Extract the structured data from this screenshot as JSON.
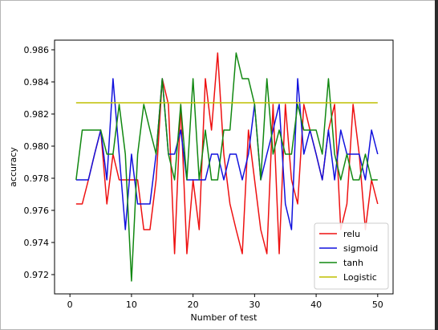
{
  "chart_data": {
    "type": "line",
    "xlabel": "Number of test",
    "ylabel": "accuracy",
    "xlim": [
      -2.5,
      52.5
    ],
    "ylim": [
      0.9708,
      0.9866
    ],
    "xticks": [
      0,
      10,
      20,
      30,
      40,
      50
    ],
    "yticks": [
      0.972,
      0.974,
      0.976,
      0.978,
      0.98,
      0.982,
      0.984,
      0.986
    ],
    "xtick_labels": [
      "0",
      "10",
      "20",
      "30",
      "40",
      "50"
    ],
    "ytick_labels": [
      "0.972",
      "0.974",
      "0.976",
      "0.978",
      "0.980",
      "0.982",
      "0.984",
      "0.986"
    ],
    "legend_position": "lower-right",
    "grid": false,
    "x": [
      1,
      2,
      3,
      4,
      5,
      6,
      7,
      8,
      9,
      10,
      11,
      12,
      13,
      14,
      15,
      16,
      17,
      18,
      19,
      20,
      21,
      22,
      23,
      24,
      25,
      26,
      27,
      28,
      29,
      30,
      31,
      32,
      33,
      34,
      35,
      36,
      37,
      38,
      39,
      40,
      41,
      42,
      43,
      44,
      45,
      46,
      47,
      48,
      49,
      50
    ],
    "series": [
      {
        "name": "relu",
        "color": "#ee1111",
        "values": [
          0.9764,
          0.9764,
          0.9779,
          0.9795,
          0.981,
          0.9764,
          0.9795,
          0.9779,
          0.9779,
          0.9779,
          0.9779,
          0.9748,
          0.9748,
          0.9779,
          0.9842,
          0.9826,
          0.9733,
          0.9826,
          0.9733,
          0.9779,
          0.9748,
          0.9842,
          0.981,
          0.9858,
          0.9795,
          0.9764,
          0.9748,
          0.9733,
          0.981,
          0.9779,
          0.9748,
          0.9733,
          0.9826,
          0.9733,
          0.9826,
          0.9779,
          0.9764,
          0.9826,
          0.981,
          0.9795,
          0.9779,
          0.981,
          0.9826,
          0.9748,
          0.9764,
          0.9826,
          0.9795,
          0.9748,
          0.9779,
          0.9764
        ]
      },
      {
        "name": "sigmoid",
        "color": "#1111dd",
        "values": [
          0.9779,
          0.9779,
          0.9779,
          0.9795,
          0.981,
          0.9779,
          0.9842,
          0.9795,
          0.9748,
          0.9795,
          0.9764,
          0.9764,
          0.9764,
          0.9795,
          0.9842,
          0.9795,
          0.9795,
          0.981,
          0.9779,
          0.9779,
          0.9779,
          0.9779,
          0.9795,
          0.9795,
          0.9779,
          0.9795,
          0.9795,
          0.9779,
          0.9795,
          0.9826,
          0.9779,
          0.9795,
          0.981,
          0.9826,
          0.9764,
          0.9748,
          0.9842,
          0.9795,
          0.981,
          0.9795,
          0.9779,
          0.981,
          0.9779,
          0.981,
          0.9795,
          0.9795,
          0.9795,
          0.9779,
          0.981,
          0.9795
        ]
      },
      {
        "name": "tanh",
        "color": "#118811",
        "values": [
          0.9779,
          0.981,
          0.981,
          0.981,
          0.981,
          0.9795,
          0.9795,
          0.9826,
          0.9795,
          0.9716,
          0.9795,
          0.9826,
          0.981,
          0.9795,
          0.9842,
          0.9795,
          0.9779,
          0.9826,
          0.9779,
          0.9842,
          0.9779,
          0.981,
          0.9779,
          0.9779,
          0.981,
          0.981,
          0.9858,
          0.9842,
          0.9842,
          0.9826,
          0.9779,
          0.9842,
          0.9795,
          0.981,
          0.9795,
          0.9795,
          0.9826,
          0.981,
          0.981,
          0.981,
          0.9795,
          0.9842,
          0.9795,
          0.9779,
          0.9795,
          0.9779,
          0.9779,
          0.9795,
          0.9779,
          0.9779
        ]
      },
      {
        "name": "Logistic",
        "color": "#bfbf00",
        "values": [
          0.9827,
          0.9827,
          0.9827,
          0.9827,
          0.9827,
          0.9827,
          0.9827,
          0.9827,
          0.9827,
          0.9827,
          0.9827,
          0.9827,
          0.9827,
          0.9827,
          0.9827,
          0.9827,
          0.9827,
          0.9827,
          0.9827,
          0.9827,
          0.9827,
          0.9827,
          0.9827,
          0.9827,
          0.9827,
          0.9827,
          0.9827,
          0.9827,
          0.9827,
          0.9827,
          0.9827,
          0.9827,
          0.9827,
          0.9827,
          0.9827,
          0.9827,
          0.9827,
          0.9827,
          0.9827,
          0.9827,
          0.9827,
          0.9827,
          0.9827,
          0.9827,
          0.9827,
          0.9827,
          0.9827,
          0.9827,
          0.9827,
          0.9827
        ]
      }
    ]
  }
}
